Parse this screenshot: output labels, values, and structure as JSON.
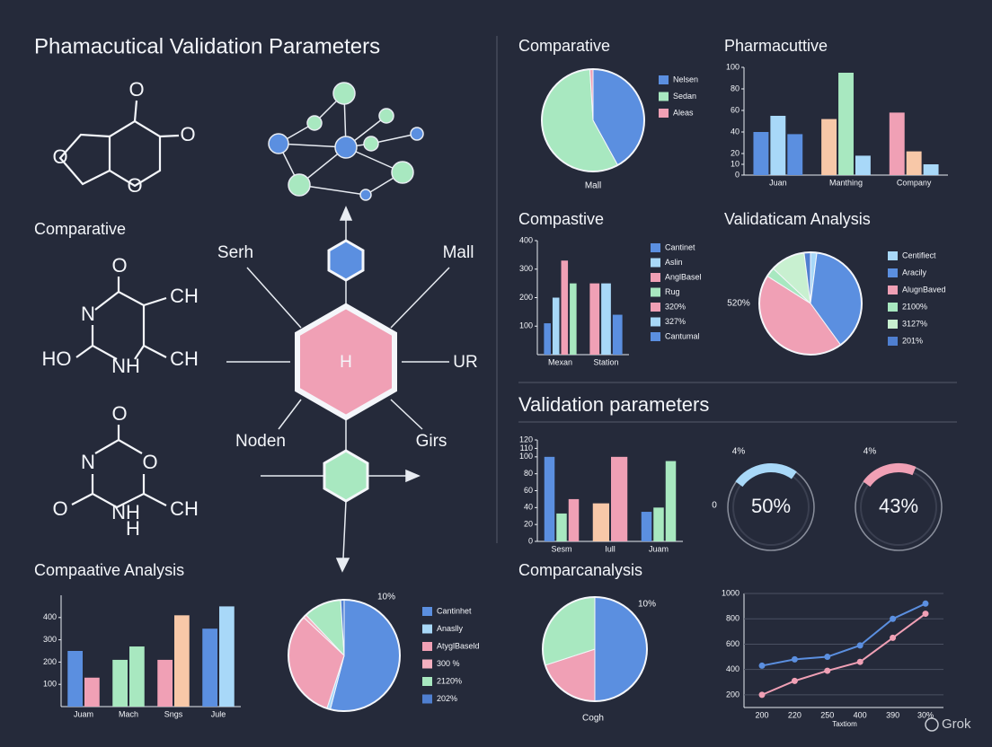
{
  "title": "Phamacutical Validation Parameters",
  "side_label": "Comparative",
  "molecules": [
    {
      "atoms": [
        "O",
        "O",
        "O",
        "O"
      ]
    },
    {
      "atoms": [
        "O",
        "N",
        "CH",
        "HO",
        "NH",
        "CH"
      ]
    },
    {
      "atoms": [
        "O",
        "N",
        "O",
        "O",
        "NH",
        "CH",
        "H"
      ]
    }
  ],
  "network": {
    "center": "H",
    "labels": [
      "Serh",
      "Mall",
      "UR",
      "Noden",
      "Girs"
    ]
  },
  "watermark": "Grok",
  "chart_data": [
    {
      "type": "pie",
      "title": "Comparative",
      "categories": [
        "Nelsen",
        "Sedan",
        "Aleas"
      ],
      "values": [
        42,
        57,
        1
      ],
      "colors": [
        "#5b8fe0",
        "#a8e8c0",
        "#f0a0b5"
      ],
      "annotations": [
        "Mall"
      ]
    },
    {
      "type": "bar",
      "title": "Pharmacuttive",
      "categories": [
        "Juan",
        "Manthing",
        "Company"
      ],
      "ylim": [
        0,
        100
      ],
      "yticks": [
        0,
        10,
        20,
        40,
        60,
        80,
        100
      ],
      "series": [
        {
          "values": [
            40,
            52,
            58
          ],
          "colors": [
            "#5b8fe0",
            "#f8c8a8",
            "#f0a0b5"
          ]
        },
        {
          "values": [
            55,
            95,
            22
          ],
          "colors": [
            "#a8d8f8",
            "#a8e8c0",
            "#f8c8a8"
          ]
        },
        {
          "values": [
            38,
            18,
            10
          ],
          "colors": [
            "#5b8fe0",
            "#a8d8f8",
            "#a8d8f8"
          ]
        }
      ]
    },
    {
      "type": "bar",
      "title": "Compastive",
      "categories": [
        "Mexan",
        "Station"
      ],
      "ylim": [
        0,
        400
      ],
      "yticks": [
        100,
        200,
        300,
        400
      ],
      "series": [
        {
          "name": "Cantinet",
          "color": "#5b8fe0",
          "values": [
            110,
            null
          ]
        },
        {
          "name": "Aslin",
          "color": "#a8d8f8",
          "values": [
            200,
            null
          ]
        },
        {
          "name": "AnglBasel",
          "color": "#f0a0b5",
          "values": [
            330,
            null
          ]
        },
        {
          "name": "Rug",
          "color": "#a8e8c0",
          "values": [
            250,
            null
          ]
        },
        {
          "name": "320%",
          "color": "#f0a0b5",
          "values": [
            null,
            250
          ]
        },
        {
          "name": "327%",
          "color": "#a8d8f8",
          "values": [
            null,
            250
          ]
        },
        {
          "name": "Cantumal",
          "color": "#5b8fe0",
          "values": [
            null,
            140
          ]
        }
      ]
    },
    {
      "type": "pie",
      "title": "Validaticam Analysis",
      "categories": [
        "Centifiect",
        "Aracily",
        "AlugnBaved",
        "2100%",
        "3127%",
        "201%"
      ],
      "values": [
        2,
        38,
        44,
        3,
        11,
        2
      ],
      "colors": [
        "#a8d8f8",
        "#5b8fe0",
        "#f0a0b5",
        "#a8e8c0",
        "#c8f0d0",
        "#4f7fd0"
      ],
      "annotations": [
        "520%"
      ]
    },
    {
      "type": "bar",
      "title": "Validation parameters",
      "categories": [
        "Sesm",
        "Iull",
        "Juam"
      ],
      "ylim": [
        0,
        120
      ],
      "yticks": [
        0,
        20,
        40,
        60,
        80,
        100,
        110,
        120
      ],
      "series": [
        {
          "values": [
            100,
            45,
            35
          ],
          "colors": [
            "#5b8fe0",
            "#f8c8a8",
            "#5b8fe0"
          ]
        },
        {
          "values": [
            33,
            100,
            40
          ],
          "colors": [
            "#a8e8c0",
            "#f0a0b5",
            "#a8e8c0"
          ]
        },
        {
          "values": [
            50,
            null,
            95
          ],
          "colors": [
            "#f0a0b5",
            "#f0a0b5",
            "#a8e8c0"
          ]
        }
      ]
    },
    {
      "type": "gauge",
      "values": [
        50
      ],
      "value_labels": [
        "50%"
      ],
      "color": "#a8d8f8",
      "annotations": [
        "4%",
        "0"
      ]
    },
    {
      "type": "gauge",
      "values": [
        43
      ],
      "value_labels": [
        "43%"
      ],
      "color": "#f0a0b5",
      "annotations": [
        "4%"
      ]
    },
    {
      "type": "bar",
      "title": "Compaative Analysis",
      "categories": [
        "Juam",
        "Mach",
        "Sngs",
        "Jule"
      ],
      "ylim": [
        0,
        500
      ],
      "yticks": [
        100,
        200,
        300,
        400
      ],
      "series": [
        {
          "values": [
            250,
            210,
            210,
            350
          ],
          "colors": [
            "#5b8fe0",
            "#a8e8c0",
            "#f0a0b5",
            "#5b8fe0"
          ]
        },
        {
          "values": [
            130,
            270,
            410,
            450
          ],
          "colors": [
            "#f0a0b5",
            "#a8e8c0",
            "#f8c8a8",
            "#a8d8f8"
          ]
        }
      ]
    },
    {
      "type": "pie",
      "categories": [
        "Cantinhet",
        "Anaslly",
        "AtyglBaseld",
        "300 %",
        "2120%",
        "202%"
      ],
      "values": [
        54,
        1,
        32,
        1,
        11,
        1
      ],
      "colors": [
        "#5b8fe0",
        "#a8d8f8",
        "#f0a0b5",
        "#f4b0c0",
        "#a8e8c0",
        "#4f7fd0"
      ],
      "annotations": [
        "10%"
      ]
    },
    {
      "type": "pie",
      "title": "Comparcanalysis",
      "values": [
        50,
        20,
        30
      ],
      "colors": [
        "#5b8fe0",
        "#f0a0b5",
        "#a8e8c0"
      ],
      "annotations": [
        "10%",
        "Cogh"
      ]
    },
    {
      "type": "line",
      "categories": [
        "200",
        "220",
        "250",
        "400",
        "390",
        "30%"
      ],
      "xlabel": "Taxtiom",
      "ylim": [
        100,
        1000
      ],
      "yticks": [
        200,
        400,
        600,
        800,
        1000
      ],
      "grid": true,
      "series": [
        {
          "color": "#5b8fe0",
          "values": [
            430,
            480,
            500,
            590,
            800,
            920
          ]
        },
        {
          "color": "#f0a0b5",
          "values": [
            200,
            310,
            390,
            460,
            650,
            840
          ]
        }
      ]
    }
  ]
}
